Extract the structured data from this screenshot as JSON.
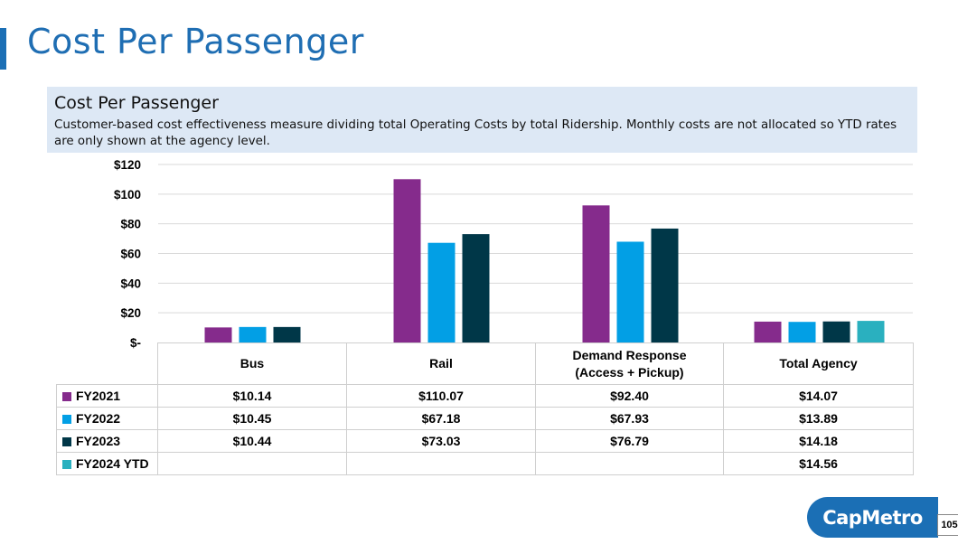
{
  "page_title": "Cost Per Passenger",
  "box": {
    "title": "Cost Per Passenger",
    "description": "Customer-based cost effectiveness measure dividing total Operating Costs by total Ridership. Monthly costs are not allocated so YTD rates are only shown at the agency level."
  },
  "colors": {
    "FY2021": "#852b8c",
    "FY2022": "#029fe5",
    "FY2023": "#003748",
    "FY2024 YTD": "#2ab0bf",
    "title_blue": "#1f6eb3",
    "logo_blue": "#1b6fb5"
  },
  "chart_data": {
    "type": "bar",
    "title": "Cost Per Passenger",
    "categories": [
      "Bus",
      "Rail",
      "Demand Response (Access + Pickup)",
      "Total Agency"
    ],
    "category_lines": [
      [
        "Bus"
      ],
      [
        "Rail"
      ],
      [
        "Demand Response",
        "(Access + Pickup)"
      ],
      [
        "Total Agency"
      ]
    ],
    "series": [
      {
        "name": "FY2021",
        "values": [
          10.14,
          110.07,
          92.4,
          14.07
        ],
        "labels": [
          "$10.14",
          "$110.07",
          "$92.40",
          "$14.07"
        ]
      },
      {
        "name": "FY2022",
        "values": [
          10.45,
          67.18,
          67.93,
          13.89
        ],
        "labels": [
          "$10.45",
          "$67.18",
          "$67.93",
          "$13.89"
        ]
      },
      {
        "name": "FY2023",
        "values": [
          10.44,
          73.03,
          76.79,
          14.18
        ],
        "labels": [
          "$10.44",
          "$73.03",
          "$76.79",
          "$14.18"
        ]
      },
      {
        "name": "FY2024 YTD",
        "values": [
          null,
          null,
          null,
          14.56
        ],
        "labels": [
          "",
          "",
          "",
          "$14.56"
        ]
      }
    ],
    "ylim": [
      0,
      120
    ],
    "yticks": [
      0,
      20,
      40,
      60,
      80,
      100,
      120
    ],
    "ytick_labels": [
      "$-",
      "$20",
      "$40",
      "$60",
      "$80",
      "$100",
      "$120"
    ],
    "grid": true,
    "legend": "data-table-below"
  },
  "logo": "CapMetro",
  "page_number": "105"
}
